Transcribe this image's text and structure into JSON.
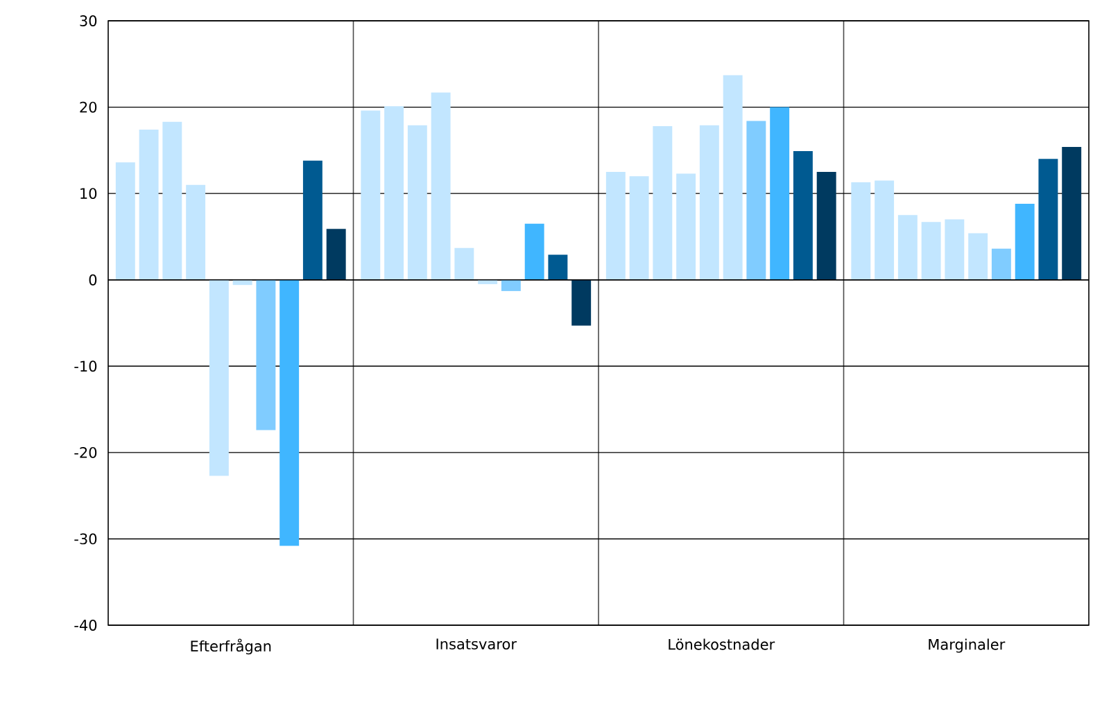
{
  "chart_data": {
    "type": "bar",
    "categories": [
      "Efterfrågan",
      "Insatsvaror",
      "Lönekostnader",
      "Marginaler"
    ],
    "series": [
      {
        "color": "#c2e6ff",
        "values": [
          13.6,
          19.6,
          12.5,
          11.3
        ]
      },
      {
        "color": "#c2e6ff",
        "values": [
          17.4,
          20.1,
          12.0,
          11.5
        ]
      },
      {
        "color": "#c2e6ff",
        "values": [
          18.3,
          17.9,
          17.8,
          7.5
        ]
      },
      {
        "color": "#c2e6ff",
        "values": [
          11.0,
          21.7,
          12.3,
          6.7
        ]
      },
      {
        "color": "#c2e6ff",
        "values": [
          -22.7,
          3.7,
          17.9,
          7.0
        ]
      },
      {
        "color": "#c2e6ff",
        "values": [
          -0.6,
          -0.5,
          23.7,
          5.4
        ]
      },
      {
        "color": "#80ccff",
        "values": [
          -17.4,
          -1.3,
          18.4,
          3.6
        ]
      },
      {
        "color": "#40b6ff",
        "values": [
          -30.8,
          6.5,
          20.0,
          8.8
        ]
      },
      {
        "color": "#005a91",
        "values": [
          13.8,
          2.9,
          14.9,
          14.0
        ]
      },
      {
        "color": "#003a60",
        "values": [
          5.9,
          -5.3,
          12.5,
          15.4
        ]
      }
    ],
    "ylim": [
      -40,
      30
    ],
    "yticks": [
      -40,
      -30,
      -20,
      -10,
      0,
      10,
      20,
      30
    ],
    "grid": true
  }
}
